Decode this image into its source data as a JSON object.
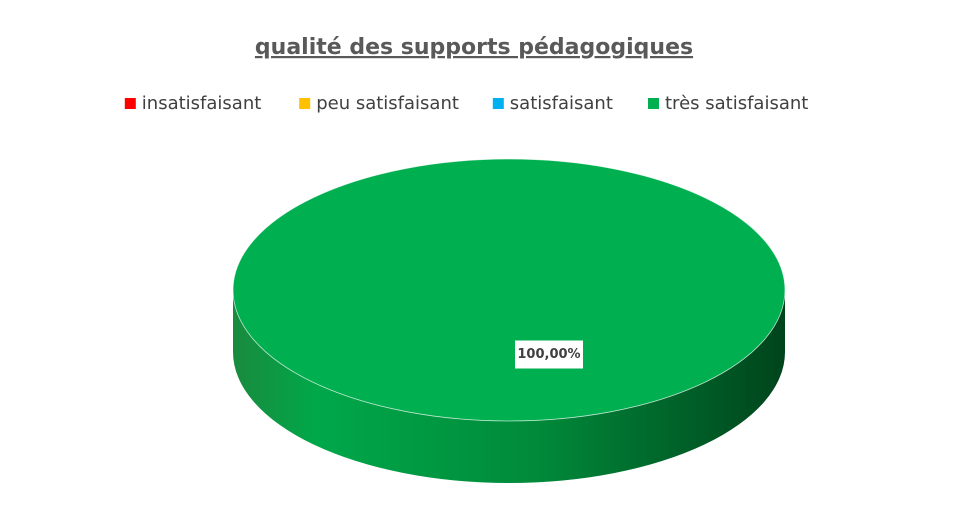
{
  "chart_data": {
    "type": "pie",
    "title": "qualité des supports pédagogiques",
    "categories": [
      "insatisfaisant",
      "peu satisfaisant",
      "satisfaisant",
      "très satisfaisant"
    ],
    "values": [
      0,
      0,
      0,
      100
    ],
    "value_labels": [
      null,
      null,
      null,
      "100,00%"
    ],
    "colors": [
      "#ff0000",
      "#ffc000",
      "#00b0f0",
      "#00b050"
    ],
    "legend": "top"
  }
}
